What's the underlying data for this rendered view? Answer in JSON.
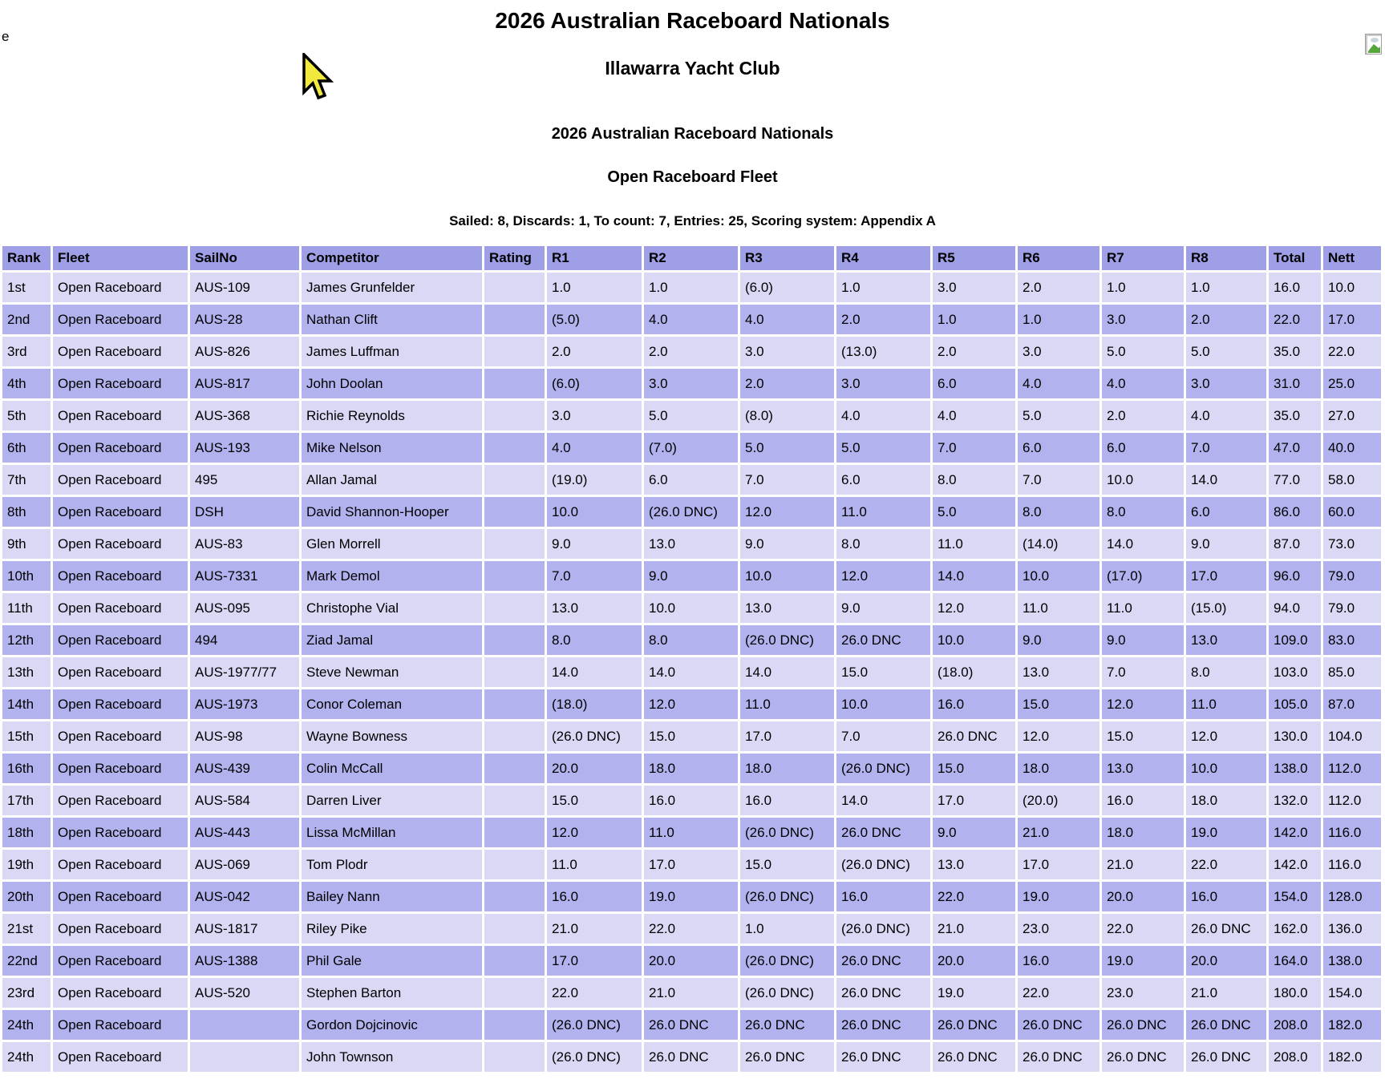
{
  "page": {
    "stray_char": "e",
    "title": "2026 Australian Raceboard Nationals",
    "venue": "Illawarra Yacht Club",
    "series_title": "2026 Australian Raceboard Nationals",
    "fleet_title": "Open Raceboard Fleet",
    "summary": "Sailed: 8, Discards: 1, To count: 7, Entries: 25, Scoring system: Appendix A"
  },
  "colors": {
    "header_bg": "#9f9fe8",
    "row_light_bg": "#d9d9f6",
    "row_dark_bg": "#b2b2ee",
    "gap": "#ffffff",
    "text": "#000000",
    "cursor_fill": "#f2e93f",
    "cursor_outline": "#000000"
  },
  "icons": {
    "broken_image": "broken-image-placeholder-icon",
    "cursor": "mouse-cursor-pointer"
  },
  "table": {
    "columns": [
      "Rank",
      "Fleet",
      "SailNo",
      "Competitor",
      "Rating",
      "R1",
      "R2",
      "R3",
      "R4",
      "R5",
      "R6",
      "R7",
      "R8",
      "Total",
      "Nett"
    ],
    "rows": [
      [
        "1st",
        "Open Raceboard",
        "AUS-109",
        "James Grunfelder",
        "",
        "1.0",
        "1.0",
        "(6.0)",
        "1.0",
        "3.0",
        "2.0",
        "1.0",
        "1.0",
        "16.0",
        "10.0"
      ],
      [
        "2nd",
        "Open Raceboard",
        "AUS-28",
        "Nathan Clift",
        "",
        "(5.0)",
        "4.0",
        "4.0",
        "2.0",
        "1.0",
        "1.0",
        "3.0",
        "2.0",
        "22.0",
        "17.0"
      ],
      [
        "3rd",
        "Open Raceboard",
        "AUS-826",
        "James Luffman",
        "",
        "2.0",
        "2.0",
        "3.0",
        "(13.0)",
        "2.0",
        "3.0",
        "5.0",
        "5.0",
        "35.0",
        "22.0"
      ],
      [
        "4th",
        "Open Raceboard",
        "AUS-817",
        "John Doolan",
        "",
        "(6.0)",
        "3.0",
        "2.0",
        "3.0",
        "6.0",
        "4.0",
        "4.0",
        "3.0",
        "31.0",
        "25.0"
      ],
      [
        "5th",
        "Open Raceboard",
        "AUS-368",
        "Richie Reynolds",
        "",
        "3.0",
        "5.0",
        "(8.0)",
        "4.0",
        "4.0",
        "5.0",
        "2.0",
        "4.0",
        "35.0",
        "27.0"
      ],
      [
        "6th",
        "Open Raceboard",
        "AUS-193",
        "Mike Nelson",
        "",
        "4.0",
        "(7.0)",
        "5.0",
        "5.0",
        "7.0",
        "6.0",
        "6.0",
        "7.0",
        "47.0",
        "40.0"
      ],
      [
        "7th",
        "Open Raceboard",
        "495",
        "Allan Jamal",
        "",
        "(19.0)",
        "6.0",
        "7.0",
        "6.0",
        "8.0",
        "7.0",
        "10.0",
        "14.0",
        "77.0",
        "58.0"
      ],
      [
        "8th",
        "Open Raceboard",
        "DSH",
        "David Shannon-Hooper",
        "",
        "10.0",
        "(26.0 DNC)",
        "12.0",
        "11.0",
        "5.0",
        "8.0",
        "8.0",
        "6.0",
        "86.0",
        "60.0"
      ],
      [
        "9th",
        "Open Raceboard",
        "AUS-83",
        "Glen Morrell",
        "",
        "9.0",
        "13.0",
        "9.0",
        "8.0",
        "11.0",
        "(14.0)",
        "14.0",
        "9.0",
        "87.0",
        "73.0"
      ],
      [
        "10th",
        "Open Raceboard",
        "AUS-7331",
        "Mark Demol",
        "",
        "7.0",
        "9.0",
        "10.0",
        "12.0",
        "14.0",
        "10.0",
        "(17.0)",
        "17.0",
        "96.0",
        "79.0"
      ],
      [
        "11th",
        "Open Raceboard",
        "AUS-095",
        "Christophe Vial",
        "",
        "13.0",
        "10.0",
        "13.0",
        "9.0",
        "12.0",
        "11.0",
        "11.0",
        "(15.0)",
        "94.0",
        "79.0"
      ],
      [
        "12th",
        "Open Raceboard",
        "494",
        "Ziad Jamal",
        "",
        "8.0",
        "8.0",
        "(26.0 DNC)",
        "26.0 DNC",
        "10.0",
        "9.0",
        "9.0",
        "13.0",
        "109.0",
        "83.0"
      ],
      [
        "13th",
        "Open Raceboard",
        "AUS-1977/77",
        "Steve Newman",
        "",
        "14.0",
        "14.0",
        "14.0",
        "15.0",
        "(18.0)",
        "13.0",
        "7.0",
        "8.0",
        "103.0",
        "85.0"
      ],
      [
        "14th",
        "Open Raceboard",
        "AUS-1973",
        "Conor Coleman",
        "",
        "(18.0)",
        "12.0",
        "11.0",
        "10.0",
        "16.0",
        "15.0",
        "12.0",
        "11.0",
        "105.0",
        "87.0"
      ],
      [
        "15th",
        "Open Raceboard",
        "AUS-98",
        "Wayne Bowness",
        "",
        "(26.0 DNC)",
        "15.0",
        "17.0",
        "7.0",
        "26.0 DNC",
        "12.0",
        "15.0",
        "12.0",
        "130.0",
        "104.0"
      ],
      [
        "16th",
        "Open Raceboard",
        "AUS-439",
        "Colin McCall",
        "",
        "20.0",
        "18.0",
        "18.0",
        "(26.0 DNC)",
        "15.0",
        "18.0",
        "13.0",
        "10.0",
        "138.0",
        "112.0"
      ],
      [
        "17th",
        "Open Raceboard",
        "AUS-584",
        "Darren Liver",
        "",
        "15.0",
        "16.0",
        "16.0",
        "14.0",
        "17.0",
        "(20.0)",
        "16.0",
        "18.0",
        "132.0",
        "112.0"
      ],
      [
        "18th",
        "Open Raceboard",
        "AUS-443",
        "Lissa McMillan",
        "",
        "12.0",
        "11.0",
        "(26.0 DNC)",
        "26.0 DNC",
        "9.0",
        "21.0",
        "18.0",
        "19.0",
        "142.0",
        "116.0"
      ],
      [
        "19th",
        "Open Raceboard",
        "AUS-069",
        "Tom Plodr",
        "",
        "11.0",
        "17.0",
        "15.0",
        "(26.0 DNC)",
        "13.0",
        "17.0",
        "21.0",
        "22.0",
        "142.0",
        "116.0"
      ],
      [
        "20th",
        "Open Raceboard",
        "AUS-042",
        "Bailey Nann",
        "",
        "16.0",
        "19.0",
        "(26.0 DNC)",
        "16.0",
        "22.0",
        "19.0",
        "20.0",
        "16.0",
        "154.0",
        "128.0"
      ],
      [
        "21st",
        "Open Raceboard",
        "AUS-1817",
        "Riley Pike",
        "",
        "21.0",
        "22.0",
        "1.0",
        "(26.0 DNC)",
        "21.0",
        "23.0",
        "22.0",
        "26.0 DNC",
        "162.0",
        "136.0"
      ],
      [
        "22nd",
        "Open Raceboard",
        "AUS-1388",
        "Phil Gale",
        "",
        "17.0",
        "20.0",
        "(26.0 DNC)",
        "26.0 DNC",
        "20.0",
        "16.0",
        "19.0",
        "20.0",
        "164.0",
        "138.0"
      ],
      [
        "23rd",
        "Open Raceboard",
        "AUS-520",
        "Stephen Barton",
        "",
        "22.0",
        "21.0",
        "(26.0 DNC)",
        "26.0 DNC",
        "19.0",
        "22.0",
        "23.0",
        "21.0",
        "180.0",
        "154.0"
      ],
      [
        "24th",
        "Open Raceboard",
        "",
        "Gordon Dojcinovic",
        "",
        "(26.0 DNC)",
        "26.0 DNC",
        "26.0 DNC",
        "26.0 DNC",
        "26.0 DNC",
        "26.0 DNC",
        "26.0 DNC",
        "26.0 DNC",
        "208.0",
        "182.0"
      ],
      [
        "24th",
        "Open Raceboard",
        "",
        "John Townson",
        "",
        "(26.0 DNC)",
        "26.0 DNC",
        "26.0 DNC",
        "26.0 DNC",
        "26.0 DNC",
        "26.0 DNC",
        "26.0 DNC",
        "26.0 DNC",
        "208.0",
        "182.0"
      ]
    ]
  }
}
